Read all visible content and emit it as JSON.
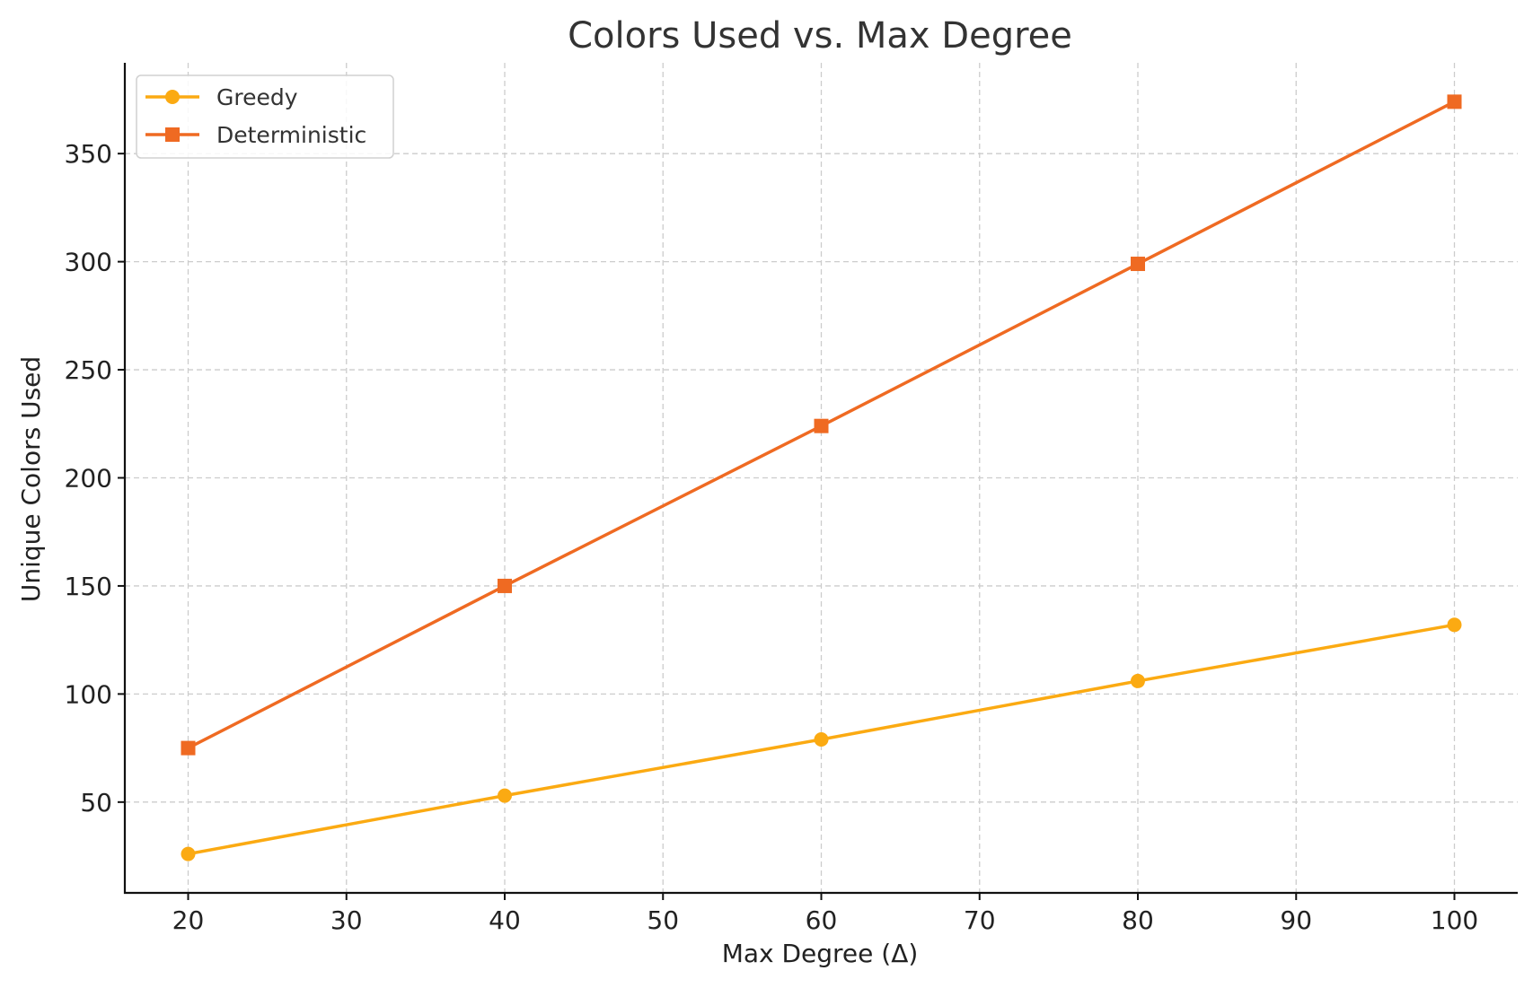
{
  "chart_data": {
    "type": "line",
    "title": "Colors Used vs. Max Degree",
    "xlabel": "Max Degree (Δ)",
    "ylabel": "Unique Colors Used",
    "xlim": [
      16,
      104
    ],
    "ylim": [
      8,
      392
    ],
    "xticks": [
      "20",
      "30",
      "40",
      "50",
      "60",
      "70",
      "80",
      "90",
      "100"
    ],
    "yticks": [
      "50",
      "100",
      "150",
      "200",
      "250",
      "300",
      "350"
    ],
    "grid": true,
    "legend_position": "top-left",
    "x": [
      20,
      40,
      60,
      80,
      100
    ],
    "series": [
      {
        "name": "Greedy",
        "color": "#FBAA12",
        "marker": "circle",
        "values": [
          26,
          53,
          79,
          106,
          132
        ]
      },
      {
        "name": "Deterministic",
        "color": "#EF6A22",
        "marker": "square",
        "values": [
          75,
          150,
          224,
          299,
          374
        ]
      }
    ]
  }
}
